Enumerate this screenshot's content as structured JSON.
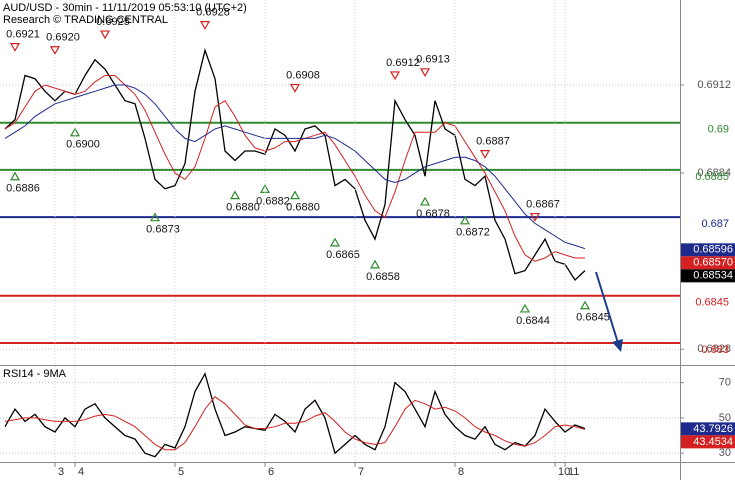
{
  "chart_data": [
    {
      "type": "line",
      "title": "AUD/USD - 30min - 11/11/2019 05:53:10 (UTC+2)",
      "subtitle": "Research © TRADING CENTRAL",
      "ylim": [
        0.6823,
        0.6939
      ],
      "yticks": [
        0.6912,
        0.6884,
        0.6828
      ],
      "grid": true,
      "series": [
        {
          "color": "#000000",
          "values": [
            0.6898,
            0.6901,
            0.6915,
            0.6914,
            0.691,
            0.6907,
            0.691,
            0.6909,
            0.6915,
            0.692,
            0.6917,
            0.6912,
            0.6907,
            0.6906,
            0.6895,
            0.6882,
            0.6879,
            0.688,
            0.6887,
            0.691,
            0.6923,
            0.6914,
            0.6891,
            0.6888,
            0.6891,
            0.6891,
            0.689,
            0.6898,
            0.6896,
            0.6891,
            0.6898,
            0.6899,
            0.6896,
            0.688,
            0.6882,
            0.6879,
            0.6869,
            0.6863,
            0.6874,
            0.6907,
            0.6901,
            0.6896,
            0.6883,
            0.6907,
            0.6898,
            0.6896,
            0.6882,
            0.688,
            0.6883,
            0.6869,
            0.6863,
            0.6852,
            0.6853,
            0.6858,
            0.6863,
            0.6856,
            0.6855,
            0.685,
            0.6853
          ]
        },
        {
          "color": "#d42020",
          "values": [
            0.6898,
            0.69,
            0.6905,
            0.691,
            0.6912,
            0.6911,
            0.691,
            0.6909,
            0.691,
            0.6913,
            0.6915,
            0.6915,
            0.6912,
            0.6909,
            0.6904,
            0.6897,
            0.689,
            0.6884,
            0.6882,
            0.6886,
            0.6895,
            0.6905,
            0.6907,
            0.6902,
            0.6896,
            0.6892,
            0.6891,
            0.6892,
            0.6894,
            0.6894,
            0.6895,
            0.6896,
            0.6897,
            0.6893,
            0.6888,
            0.6883,
            0.6877,
            0.6872,
            0.687,
            0.6878,
            0.6888,
            0.6897,
            0.6897,
            0.6897,
            0.69,
            0.6899,
            0.6894,
            0.6889,
            0.6884,
            0.6878,
            0.6872,
            0.6864,
            0.6858,
            0.6856,
            0.6857,
            0.6859,
            0.6858,
            0.6857,
            0.6857
          ]
        },
        {
          "color": "#1e2a8c",
          "values": [
            0.6895,
            0.6897,
            0.6899,
            0.6902,
            0.6904,
            0.6906,
            0.6907,
            0.6908,
            0.6909,
            0.691,
            0.6911,
            0.6912,
            0.6912,
            0.6911,
            0.6909,
            0.6906,
            0.6902,
            0.6898,
            0.6895,
            0.6894,
            0.6896,
            0.6898,
            0.6899,
            0.6898,
            0.6897,
            0.6896,
            0.6895,
            0.6895,
            0.6895,
            0.6895,
            0.6895,
            0.6895,
            0.6896,
            0.6895,
            0.6893,
            0.6891,
            0.6888,
            0.6885,
            0.6882,
            0.6881,
            0.6882,
            0.6884,
            0.6886,
            0.6887,
            0.6888,
            0.6889,
            0.6889,
            0.6888,
            0.6886,
            0.6883,
            0.6879,
            0.6875,
            0.6871,
            0.6868,
            0.6866,
            0.6864,
            0.6862,
            0.6861,
            0.686
          ]
        }
      ],
      "levels": [
        {
          "value": 0.69,
          "color": "#2e8b2e"
        },
        {
          "value": 0.6885,
          "color": "#2e8b2e"
        },
        {
          "value": 0.687,
          "color": "#1e2a8c"
        },
        {
          "value": 0.6845,
          "color": "#d42020"
        },
        {
          "value": 0.683,
          "color": "#d42020"
        }
      ],
      "price_tags": [
        {
          "value": 0.68596,
          "color": "#1e2a8c"
        },
        {
          "value": 0.6857,
          "label": "0.68570",
          "color": "#d42020"
        },
        {
          "value": 0.68534,
          "color": "#000000"
        }
      ],
      "swing_highs": {
        "color": "#d42020",
        "values": [
          null,
          0.6921,
          null,
          null,
          null,
          0.692,
          null,
          null,
          null,
          null,
          0.6925,
          null,
          null,
          null,
          null,
          null,
          null,
          null,
          null,
          null,
          0.6928,
          null,
          null,
          null,
          null,
          null,
          null,
          null,
          null,
          0.6908,
          null,
          null,
          null,
          null,
          null,
          null,
          null,
          null,
          null,
          0.6912,
          null,
          null,
          0.6913,
          null,
          null,
          null,
          null,
          null,
          0.6887,
          null,
          null,
          null,
          null,
          0.6867,
          null,
          null,
          null,
          null,
          null
        ],
        "value_labels": [
          null,
          "0.6921",
          null,
          null,
          null,
          "0.6920",
          null,
          null,
          null,
          null,
          "0.6925",
          null,
          null,
          null,
          null,
          null,
          null,
          null,
          null,
          null,
          "0.6928",
          null,
          null,
          null,
          null,
          null,
          null,
          null,
          null,
          "0.6908",
          null,
          null,
          null,
          null,
          null,
          null,
          null,
          null,
          null,
          "0.6912",
          null,
          null,
          "0.6913",
          null,
          null,
          null,
          null,
          null,
          "0.6887",
          null,
          null,
          null,
          null,
          "0.6867",
          null,
          null,
          null,
          null,
          null
        ]
      },
      "swing_lows": {
        "color": "#2e8b2e",
        "values": [
          null,
          0.6886,
          null,
          null,
          null,
          null,
          null,
          0.69,
          null,
          null,
          null,
          null,
          null,
          null,
          null,
          0.6873,
          null,
          null,
          null,
          null,
          null,
          null,
          null,
          0.688,
          null,
          null,
          0.6882,
          null,
          null,
          0.688,
          null,
          null,
          null,
          0.6865,
          null,
          null,
          null,
          0.6858,
          null,
          null,
          null,
          null,
          0.6878,
          null,
          null,
          null,
          0.6872,
          null,
          null,
          null,
          null,
          null,
          0.6844,
          null,
          null,
          null,
          null,
          null,
          0.6845
        ],
        "value_labels": [
          null,
          "0.6886",
          null,
          null,
          null,
          null,
          null,
          "0.6900",
          null,
          null,
          null,
          null,
          null,
          null,
          null,
          "0.6873",
          null,
          null,
          null,
          null,
          null,
          null,
          null,
          "0.6880",
          null,
          null,
          "0.6882",
          null,
          null,
          "0.6880",
          null,
          null,
          null,
          "0.6865",
          null,
          null,
          null,
          "0.6858",
          null,
          null,
          null,
          null,
          "0.6878",
          null,
          null,
          null,
          "0.6872",
          null,
          null,
          null,
          null,
          null,
          "0.6844",
          null,
          null,
          null,
          null,
          null,
          "0.6845"
        ]
      }
    },
    {
      "type": "line",
      "title": "RSI14 - 9MA",
      "categories": [
        null,
        null,
        null,
        null,
        null,
        "3",
        null,
        "4",
        null,
        null,
        null,
        null,
        null,
        null,
        null,
        null,
        null,
        "5",
        null,
        null,
        null,
        null,
        null,
        null,
        null,
        null,
        "6",
        null,
        null,
        null,
        null,
        null,
        null,
        null,
        null,
        "7",
        null,
        null,
        null,
        null,
        null,
        null,
        null,
        null,
        null,
        "8",
        null,
        null,
        null,
        null,
        null,
        null,
        null,
        null,
        null,
        "10",
        "11",
        null,
        null
      ],
      "ylim": [
        25,
        80
      ],
      "yticks": [
        70,
        50,
        30
      ],
      "grid": true,
      "series": [
        {
          "color": "#000000",
          "values": [
            45,
            55,
            48,
            52,
            45,
            42,
            50,
            45,
            55,
            58,
            50,
            45,
            40,
            38,
            30,
            28,
            35,
            33,
            45,
            65,
            75,
            55,
            40,
            42,
            45,
            44,
            43,
            52,
            48,
            42,
            55,
            60,
            50,
            30,
            35,
            40,
            35,
            32,
            45,
            70,
            65,
            55,
            45,
            65,
            52,
            45,
            40,
            38,
            45,
            35,
            32,
            36,
            34,
            40,
            55,
            48,
            42,
            46,
            44
          ]
        },
        {
          "color": "#d42020",
          "values": [
            48,
            49,
            50,
            50,
            49,
            48,
            48,
            48,
            49,
            51,
            52,
            51,
            48,
            45,
            40,
            35,
            32,
            32,
            36,
            45,
            55,
            62,
            58,
            52,
            46,
            44,
            44,
            45,
            47,
            47,
            48,
            51,
            53,
            48,
            42,
            38,
            36,
            35,
            36,
            45,
            55,
            60,
            58,
            55,
            56,
            54,
            50,
            45,
            42,
            40,
            37,
            35,
            34,
            36,
            40,
            45,
            46,
            45,
            43.5
          ]
        }
      ],
      "price_tags": [
        {
          "value": 43.7926,
          "color": "#1e2a8c"
        },
        {
          "value": 43.4534,
          "color": "#d42020"
        }
      ]
    }
  ]
}
